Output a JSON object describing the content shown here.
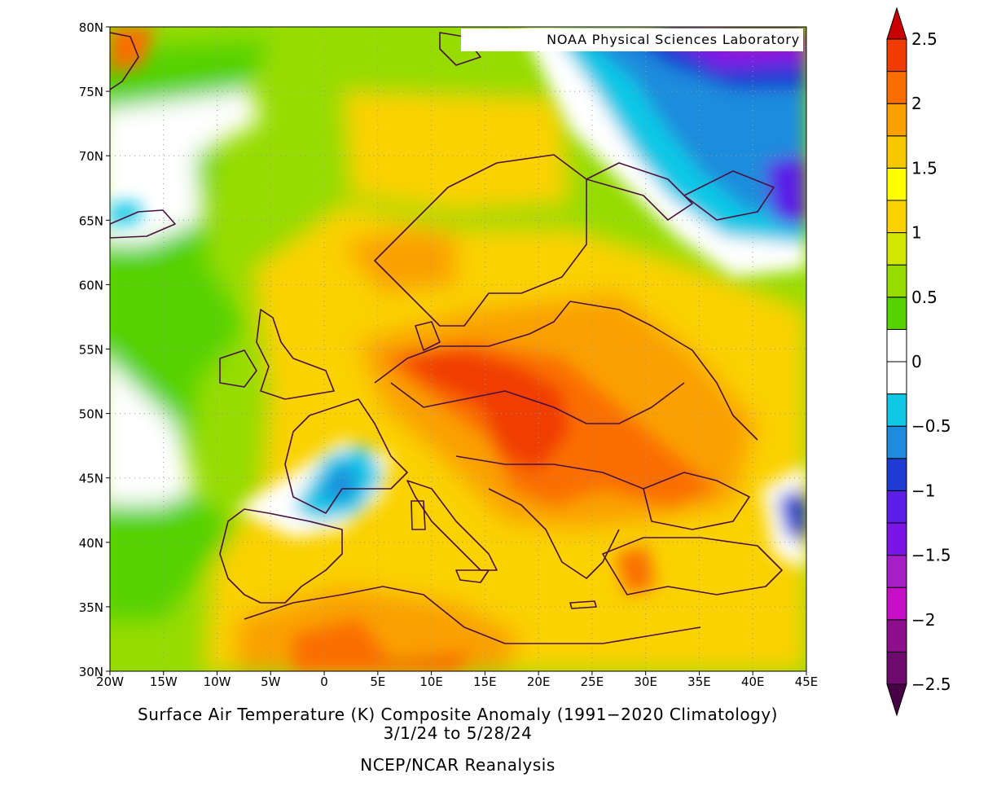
{
  "credit": "NOAA Physical Sciences Laboratory",
  "title": {
    "line1": "Surface Air Temperature (K) Composite Anomaly (1991−2020 Climatology)",
    "line2": "3/1/24  to 5/28/24",
    "line3": "NCEP/NCAR Reanalysis"
  },
  "map": {
    "lon_range": [
      -20,
      45
    ],
    "lat_range": [
      30,
      80
    ],
    "lon_ticks": [
      {
        "v": -20,
        "label": "20W"
      },
      {
        "v": -15,
        "label": "15W"
      },
      {
        "v": -10,
        "label": "10W"
      },
      {
        "v": -5,
        "label": "5W"
      },
      {
        "v": 0,
        "label": "0"
      },
      {
        "v": 5,
        "label": "5E"
      },
      {
        "v": 10,
        "label": "10E"
      },
      {
        "v": 15,
        "label": "15E"
      },
      {
        "v": 20,
        "label": "20E"
      },
      {
        "v": 25,
        "label": "25E"
      },
      {
        "v": 30,
        "label": "30E"
      },
      {
        "v": 35,
        "label": "35E"
      },
      {
        "v": 40,
        "label": "40E"
      },
      {
        "v": 45,
        "label": "45E"
      }
    ],
    "lat_ticks": [
      {
        "v": 80,
        "label": "80N"
      },
      {
        "v": 75,
        "label": "75N"
      },
      {
        "v": 70,
        "label": "70N"
      },
      {
        "v": 65,
        "label": "65N"
      },
      {
        "v": 60,
        "label": "60N"
      },
      {
        "v": 55,
        "label": "55N"
      },
      {
        "v": 50,
        "label": "50N"
      },
      {
        "v": 45,
        "label": "45N"
      },
      {
        "v": 40,
        "label": "40N"
      },
      {
        "v": 35,
        "label": "35N"
      },
      {
        "v": 30,
        "label": "30N"
      }
    ],
    "grid": "dotted"
  },
  "colorbar": {
    "colors": [
      "#6e0a6e",
      "#8e0f8e",
      "#c80fc8",
      "#a51ec8",
      "#7d14e6",
      "#5a1ee6",
      "#1e3cd2",
      "#1e8cdc",
      "#0fc8e6",
      "#ffffff",
      "#ffffff",
      "#55d200",
      "#96dc00",
      "#d2e600",
      "#fad200",
      "#ffff00",
      "#fac800",
      "#faa000",
      "#fa6e00",
      "#f03c00"
    ],
    "under_color": "#460046",
    "over_color": "#c80000",
    "labels": [
      {
        "v": 2.5,
        "label": "2.5"
      },
      {
        "v": 2,
        "label": "2"
      },
      {
        "v": 1.5,
        "label": "1.5"
      },
      {
        "v": 1,
        "label": "1"
      },
      {
        "v": 0.5,
        "label": "0.5"
      },
      {
        "v": 0,
        "label": "0"
      },
      {
        "v": -0.5,
        "label": "−0.5"
      },
      {
        "v": -1,
        "label": "−1"
      },
      {
        "v": -1.5,
        "label": "−1.5"
      },
      {
        "v": -2,
        "label": "−2"
      },
      {
        "v": -2.5,
        "label": "−2.5"
      }
    ]
  }
}
